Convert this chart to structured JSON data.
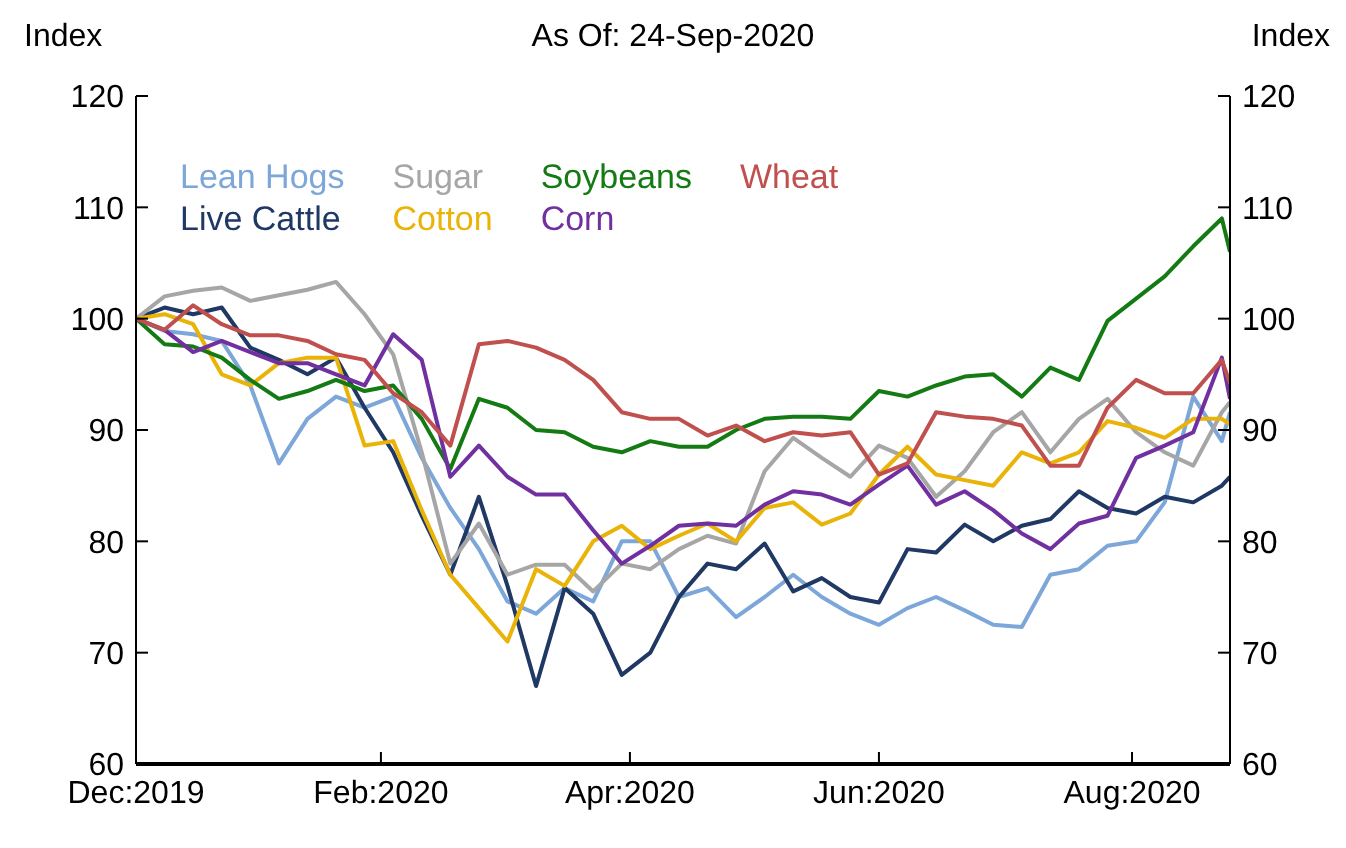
{
  "chart_data": {
    "type": "line",
    "title": "As Of: 24-Sep-2020",
    "ylabel": "Index",
    "y2label": "Index",
    "x": [
      "2019-12-31",
      "2020-01-07",
      "2020-01-14",
      "2020-01-21",
      "2020-01-28",
      "2020-02-04",
      "2020-02-11",
      "2020-02-18",
      "2020-02-25",
      "2020-03-03",
      "2020-03-10",
      "2020-03-17",
      "2020-03-24",
      "2020-03-31",
      "2020-04-07",
      "2020-04-14",
      "2020-04-21",
      "2020-04-28",
      "2020-05-05",
      "2020-05-12",
      "2020-05-19",
      "2020-05-26",
      "2020-06-02",
      "2020-06-09",
      "2020-06-16",
      "2020-06-23",
      "2020-06-30",
      "2020-07-07",
      "2020-07-14",
      "2020-07-21",
      "2020-07-28",
      "2020-08-04",
      "2020-08-11",
      "2020-08-18",
      "2020-08-25",
      "2020-09-01",
      "2020-09-08",
      "2020-09-15",
      "2020-09-22",
      "2020-09-24"
    ],
    "series": [
      {
        "name": "Lean Hogs",
        "color": "#7da7d9",
        "values": [
          100,
          98.9,
          98.6,
          98,
          94,
          87,
          91,
          93,
          92,
          93,
          87.5,
          83,
          79.3,
          74.6,
          73.5,
          75.8,
          74.6,
          80,
          80,
          75,
          75.8,
          73.2,
          75,
          77,
          75,
          73.5,
          72.5,
          74,
          75,
          73.8,
          72.5,
          72.3,
          77,
          77.5,
          79.6,
          80,
          83.5,
          93,
          89,
          91.6
        ]
      },
      {
        "name": "Live Cattle",
        "color": "#1f3864",
        "values": [
          100,
          101,
          100.4,
          101,
          97.4,
          96.3,
          95,
          96.5,
          92,
          88,
          82.3,
          77,
          84,
          76,
          67,
          75.8,
          73.5,
          68,
          70,
          75,
          78,
          77.5,
          79.8,
          75.5,
          76.7,
          75,
          74.5,
          79.3,
          79,
          81.5,
          80,
          81.4,
          82,
          84.5,
          83,
          82.5,
          84,
          83.5,
          85,
          85.8
        ]
      },
      {
        "name": "Sugar",
        "color": "#a6a6a6",
        "values": [
          100,
          102,
          102.5,
          102.8,
          101.6,
          102.1,
          102.6,
          103.3,
          100.4,
          96.8,
          88,
          78,
          81.6,
          77,
          77.9,
          77.9,
          75.5,
          78,
          77.5,
          79.3,
          80.5,
          79.8,
          86.3,
          89.3,
          87.5,
          85.8,
          88.6,
          87.5,
          84,
          86.3,
          89.8,
          91.6,
          88,
          91,
          92.8,
          89.8,
          88,
          86.8,
          91.6,
          92.5
        ]
      },
      {
        "name": "Cotton",
        "color": "#eab308",
        "values": [
          100,
          100.4,
          99.5,
          95,
          94,
          96,
          96.5,
          96.5,
          88.6,
          89,
          82.8,
          77,
          74,
          71,
          77.5,
          76,
          80,
          81.4,
          79.3,
          80.5,
          81.6,
          80,
          83,
          83.5,
          81.5,
          82.5,
          86,
          88.5,
          86,
          85.5,
          85,
          88,
          87,
          88,
          90.8,
          90.2,
          89.3,
          91,
          91,
          90.5
        ]
      },
      {
        "name": "Soybeans",
        "color": "#147a14",
        "values": [
          100,
          97.7,
          97.5,
          96.5,
          94.5,
          92.8,
          93.5,
          94.5,
          93.5,
          94,
          91,
          86.5,
          92.8,
          92,
          90,
          89.8,
          88.5,
          88,
          89,
          88.5,
          88.5,
          90,
          91,
          91.2,
          91.2,
          91,
          93.5,
          93,
          94,
          94.8,
          95,
          93,
          95.6,
          94.5,
          99.8,
          101.8,
          103.8,
          106.5,
          109,
          106
        ]
      },
      {
        "name": "Corn",
        "color": "#7030a0",
        "values": [
          100,
          99,
          97,
          98,
          97,
          96,
          96,
          95,
          94,
          98.6,
          96.3,
          85.8,
          88.6,
          85.8,
          84.2,
          84.2,
          81,
          78,
          79.6,
          81.4,
          81.6,
          81.4,
          83.3,
          84.5,
          84.2,
          83.3,
          85.1,
          86.8,
          83.3,
          84.5,
          82.8,
          80.7,
          79.3,
          81.6,
          82.3,
          87.5,
          88.6,
          89.8,
          96.5,
          92.8
        ]
      },
      {
        "name": "Wheat",
        "color": "#c0504d",
        "values": [
          100,
          99,
          101.2,
          99.5,
          98.5,
          98.5,
          98,
          96.8,
          96.3,
          93.3,
          91.6,
          88.6,
          97.7,
          98,
          97.4,
          96.3,
          94.5,
          91.6,
          91,
          91,
          89.5,
          90.4,
          89,
          89.8,
          89.5,
          89.8,
          86,
          87,
          91.6,
          91.2,
          91,
          90.4,
          86.8,
          86.8,
          92,
          94.5,
          93.3,
          93.3,
          96.3,
          94.2
        ]
      }
    ],
    "xlim": [
      "2019-12-31",
      "2020-09-24"
    ],
    "xticks": [
      {
        "value": "2019-12-31",
        "label": "Dec:2019"
      },
      {
        "value": "2020-02-29",
        "label": "Feb:2020"
      },
      {
        "value": "2020-04-30",
        "label": "Apr:2020"
      },
      {
        "value": "2020-06-30",
        "label": "Jun:2020"
      },
      {
        "value": "2020-08-31",
        "label": "Aug:2020"
      }
    ],
    "ylim": [
      60,
      120
    ],
    "yticks": [
      60,
      70,
      80,
      90,
      100,
      110,
      120
    ],
    "y2lim": [
      60,
      120
    ],
    "y2ticks": [
      60,
      70,
      80,
      90,
      100,
      110,
      120
    ],
    "legend": "top left",
    "grid": false,
    "marker": "none",
    "line_style": "solid"
  }
}
